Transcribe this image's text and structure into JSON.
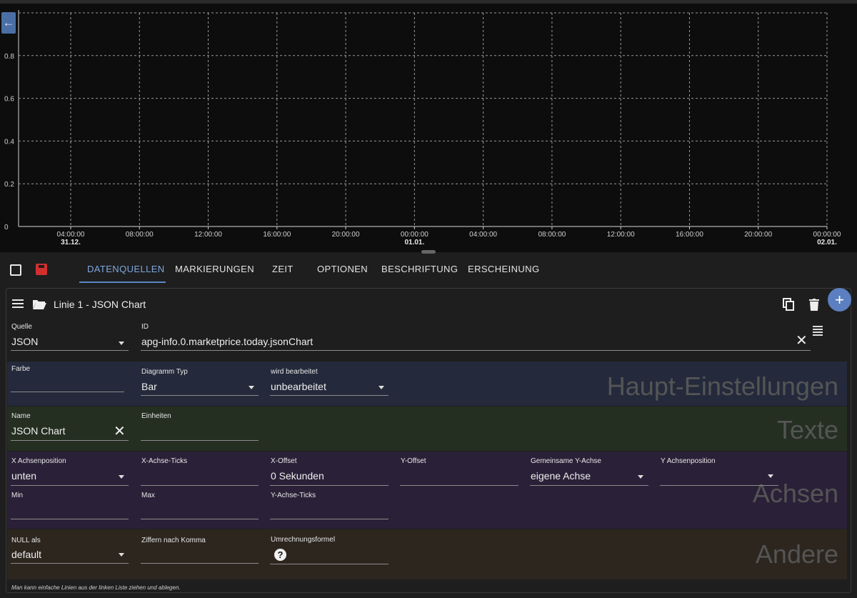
{
  "chart_data": {
    "type": "bar",
    "y_ticks": [
      "0",
      "0.2",
      "0.4",
      "0.6",
      "0.8"
    ],
    "ylim": [
      0,
      1
    ],
    "x_ticks": [
      {
        "time": "04:00:00",
        "date": "31.12."
      },
      {
        "time": "08:00:00",
        "date": ""
      },
      {
        "time": "12:00:00",
        "date": ""
      },
      {
        "time": "16:00:00",
        "date": ""
      },
      {
        "time": "20:00:00",
        "date": ""
      },
      {
        "time": "00:00:00",
        "date": "01.01."
      },
      {
        "time": "04:00:00",
        "date": ""
      },
      {
        "time": "08:00:00",
        "date": ""
      },
      {
        "time": "12:00:00",
        "date": ""
      },
      {
        "time": "16:00:00",
        "date": ""
      },
      {
        "time": "20:00:00",
        "date": ""
      },
      {
        "time": "00:00:00",
        "date": "02.01."
      }
    ],
    "series": [],
    "grid": true
  },
  "toolbar": {
    "back_icon": "arrow-left-icon"
  },
  "tabs": [
    "DATENQUELLEN",
    "MARKIERUNGEN",
    "ZEIT",
    "OPTIONEN",
    "BESCHRIFTUNG",
    "ERSCHEINUNG"
  ],
  "line": {
    "title": "Linie 1 - JSON Chart"
  },
  "fields": {
    "quelle_label": "Quelle",
    "quelle_value": "JSON",
    "id_label": "ID",
    "id_value": "apg-info.0.marketprice.today.jsonChart",
    "farbe_label": "Farbe",
    "diagramm_label": "Diagramm Typ",
    "diagramm_value": "Bar",
    "bearbeitet_label": "wird bearbeitet",
    "bearbeitet_value": "unbearbeitet",
    "name_label": "Name",
    "name_value": "JSON Chart",
    "einheiten_label": "Einheiten",
    "xpos_label": "X Achsenposition",
    "xpos_value": "unten",
    "xticks_label": "X-Achse-Ticks",
    "xoffset_label": "X-Offset",
    "xoffset_value": "0 Sekunden",
    "yoffset_label": "Y-Offset",
    "gemeinsam_label": "Gemeinsame Y-Achse",
    "gemeinsam_value": "eigene Achse",
    "ypos_label": "Y Achsenposition",
    "min_label": "Min",
    "max_label": "Max",
    "yticks_label": "Y-Achse-Ticks",
    "null_label": "NULL als",
    "null_value": "default",
    "ziffern_label": "Ziffern nach Komma",
    "formel_label": "Umrechnungsformel"
  },
  "sections": {
    "haupt": "Haupt-Einstellungen",
    "texte": "Texte",
    "achsen": "Achsen",
    "andere": "Andere"
  },
  "footer": "Man kann einfache Linien aus der linken Liste ziehen und ablegen.",
  "colors": {
    "accent": "#7fa7e0",
    "save": "#d32f2f",
    "fab": "#5b7fc0"
  }
}
